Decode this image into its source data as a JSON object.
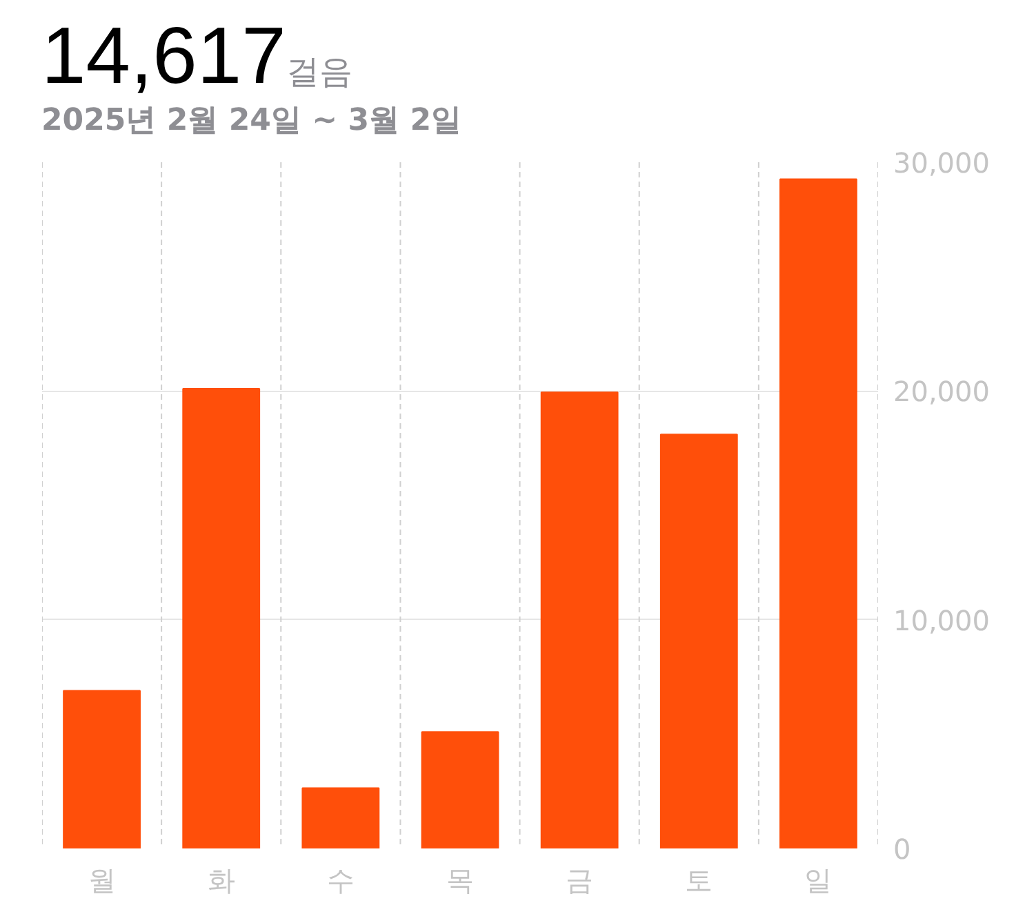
{
  "chart_data": {
    "type": "bar",
    "title": "14,617",
    "subtitle": "2025년 2월 24일 ~ 3월 2일",
    "annotations": [
      "걸음"
    ],
    "categories": [
      "월",
      "화",
      "수",
      "목",
      "금",
      "토",
      "일"
    ],
    "values": [
      6900,
      20100,
      2640,
      5090,
      19940,
      18100,
      29260
    ],
    "color": "#ff4f0a",
    "ylim": [
      0,
      30000
    ],
    "yticks": [
      0,
      {
        "value": 10000,
        "label": "10,000"
      },
      {
        "value": 20000,
        "label": "20,000"
      },
      {
        "value": 30000,
        "label": "30,000"
      }
    ],
    "grid": true
  }
}
